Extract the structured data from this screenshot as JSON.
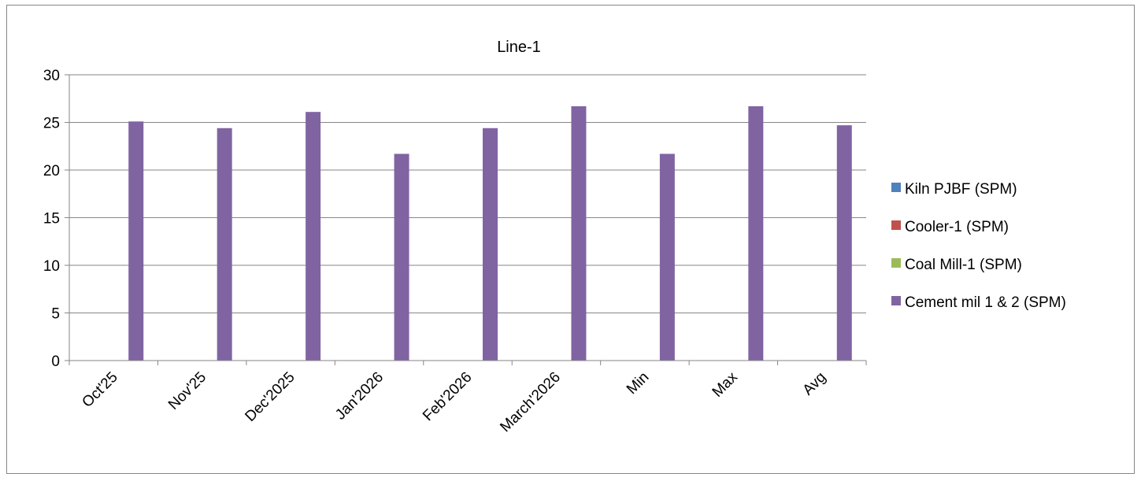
{
  "chart_data": {
    "type": "bar",
    "title": "Line-1",
    "xlabel": "",
    "ylabel": "",
    "categories": [
      "Oct'25",
      "Nov'25",
      "Dec'2025",
      "Jan'2026",
      "Feb'2026",
      "March'2026",
      "Min",
      "Max",
      "Avg"
    ],
    "series": [
      {
        "name": "Kiln PJBF (SPM)",
        "color": "#4F81BD",
        "values": [
          0,
          0,
          0,
          0,
          0,
          0,
          0,
          0,
          0
        ]
      },
      {
        "name": "Cooler-1 (SPM)",
        "color": "#C0504D",
        "values": [
          0,
          0,
          0,
          0,
          0,
          0,
          0,
          0,
          0
        ]
      },
      {
        "name": "Coal Mill-1 (SPM)",
        "color": "#9BBB59",
        "values": [
          0,
          0,
          0,
          0,
          0,
          0,
          0,
          0,
          0
        ]
      },
      {
        "name": "Cement mil 1 & 2 (SPM)",
        "color": "#8064A2",
        "values": [
          25.1,
          24.4,
          26.1,
          21.7,
          24.4,
          26.7,
          21.7,
          26.7,
          24.7
        ]
      }
    ],
    "ylim": [
      0,
      30
    ],
    "yticks": [
      0,
      5,
      10,
      15,
      20,
      25,
      30
    ],
    "grid": true,
    "legend": "right"
  }
}
